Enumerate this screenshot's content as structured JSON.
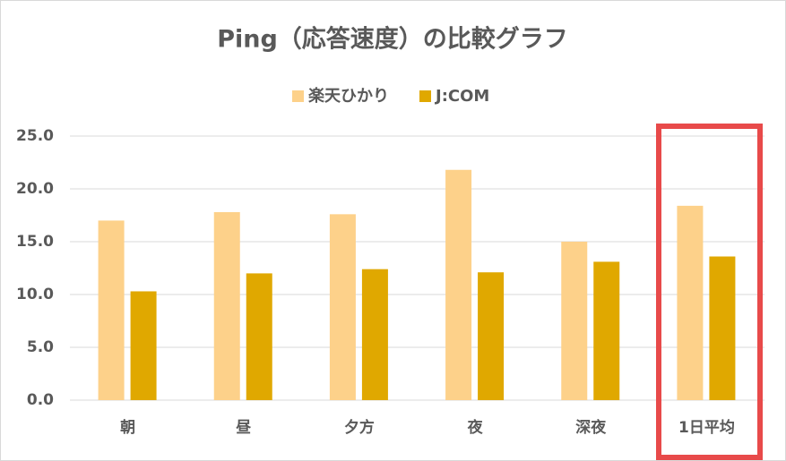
{
  "chart_data": {
    "type": "bar",
    "title": "Ping（応答速度）の比較グラフ",
    "categories": [
      "朝",
      "昼",
      "夕方",
      "夜",
      "深夜",
      "1日平均"
    ],
    "series": [
      {
        "name": "楽天ひかり",
        "color": "#fdd18a",
        "values": [
          17.0,
          17.8,
          17.6,
          21.8,
          15.0,
          18.4
        ]
      },
      {
        "name": "J:COM",
        "color": "#e0a800",
        "values": [
          10.3,
          12.0,
          12.4,
          12.1,
          13.1,
          13.6
        ]
      }
    ],
    "ylim": [
      0,
      25
    ],
    "yticks": [
      {
        "value": 0,
        "label": "0.0"
      },
      {
        "value": 5,
        "label": "5.0"
      },
      {
        "value": 10,
        "label": "10.0"
      },
      {
        "value": 15,
        "label": "15.0"
      },
      {
        "value": 20,
        "label": "20.0"
      },
      {
        "value": 25,
        "label": "25.0"
      }
    ],
    "grid": true,
    "legend": "top"
  }
}
